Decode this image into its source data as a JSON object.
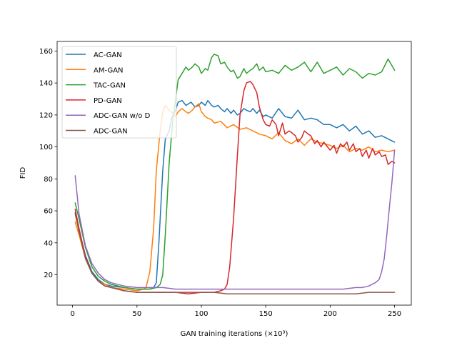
{
  "chart_data": {
    "type": "line",
    "title": "",
    "xlabel": "GAN training iterations (×10³)",
    "ylabel": "FID",
    "xlim": [
      -12,
      263
    ],
    "ylim": [
      1,
      166
    ],
    "xticks": [
      0,
      50,
      100,
      150,
      200,
      250
    ],
    "yticks": [
      20,
      40,
      60,
      80,
      100,
      120,
      140,
      160
    ],
    "grid": false,
    "legend_position": "top-left",
    "series": [
      {
        "name": "AC-GAN",
        "color": "#1f77b4",
        "x": [
          2,
          5,
          10,
          15,
          20,
          25,
          30,
          40,
          50,
          55,
          60,
          63,
          65,
          67,
          70,
          72,
          75,
          77,
          80,
          82,
          85,
          88,
          90,
          92,
          95,
          98,
          100,
          103,
          105,
          108,
          110,
          113,
          115,
          118,
          120,
          123,
          125,
          128,
          130,
          133,
          135,
          138,
          140,
          143,
          145,
          148,
          150,
          155,
          160,
          165,
          170,
          175,
          180,
          185,
          190,
          195,
          200,
          205,
          210,
          215,
          220,
          225,
          230,
          235,
          240,
          245,
          250
        ],
        "y": [
          59,
          48,
          32,
          22,
          17,
          14,
          13,
          12,
          11,
          11,
          11,
          12,
          15,
          40,
          85,
          105,
          110,
          118,
          123,
          128,
          129,
          126,
          127,
          128,
          125,
          126,
          128,
          126,
          129,
          126,
          125,
          126,
          124,
          122,
          124,
          121,
          123,
          120,
          121,
          124,
          123,
          122,
          124,
          121,
          123,
          119,
          120,
          118,
          124,
          119,
          118,
          123,
          117,
          118,
          117,
          114,
          114,
          112,
          114,
          110,
          113,
          108,
          110,
          106,
          107,
          105,
          103
        ]
      },
      {
        "name": "AM-GAN",
        "color": "#ff7f0e",
        "x": [
          2,
          5,
          10,
          15,
          20,
          25,
          30,
          40,
          50,
          55,
          57,
          60,
          63,
          65,
          68,
          70,
          72,
          75,
          78,
          80,
          82,
          85,
          88,
          90,
          93,
          95,
          98,
          100,
          103,
          105,
          108,
          110,
          115,
          120,
          125,
          130,
          135,
          140,
          145,
          150,
          155,
          160,
          165,
          170,
          175,
          180,
          185,
          190,
          195,
          200,
          205,
          210,
          215,
          220,
          225,
          230,
          235,
          240,
          245,
          250
        ],
        "y": [
          53,
          45,
          30,
          21,
          16,
          14,
          12,
          11,
          10,
          11,
          12,
          22,
          50,
          85,
          110,
          122,
          126,
          123,
          121,
          119,
          122,
          124,
          122,
          121,
          123,
          125,
          127,
          122,
          119,
          118,
          117,
          115,
          116,
          112,
          114,
          111,
          112,
          110,
          108,
          107,
          105,
          109,
          104,
          102,
          105,
          101,
          105,
          103,
          102,
          101,
          99,
          101,
          97,
          99,
          98,
          100,
          97,
          98,
          97,
          98
        ]
      },
      {
        "name": "TAC-GAN",
        "color": "#2ca02c",
        "x": [
          2,
          5,
          10,
          15,
          20,
          25,
          30,
          40,
          50,
          60,
          65,
          68,
          70,
          72,
          75,
          78,
          80,
          82,
          85,
          88,
          90,
          93,
          95,
          98,
          100,
          103,
          105,
          108,
          110,
          113,
          115,
          118,
          120,
          123,
          125,
          128,
          130,
          133,
          135,
          138,
          140,
          143,
          145,
          148,
          150,
          155,
          160,
          165,
          170,
          175,
          180,
          185,
          190,
          195,
          200,
          205,
          210,
          215,
          220,
          225,
          230,
          235,
          240,
          245,
          250
        ],
        "y": [
          65,
          55,
          37,
          25,
          19,
          16,
          14,
          12,
          11,
          11,
          12,
          14,
          20,
          45,
          90,
          118,
          130,
          142,
          146,
          150,
          148,
          150,
          152,
          150,
          146,
          149,
          148,
          156,
          158,
          157,
          152,
          153,
          150,
          147,
          148,
          143,
          144,
          149,
          146,
          148,
          149,
          152,
          148,
          150,
          147,
          148,
          146,
          151,
          148,
          150,
          153,
          147,
          153,
          146,
          148,
          150,
          145,
          149,
          147,
          143,
          146,
          145,
          147,
          155,
          148
        ]
      },
      {
        "name": "PD-GAN",
        "color": "#d62728",
        "x": [
          2,
          5,
          10,
          15,
          20,
          25,
          30,
          40,
          50,
          60,
          70,
          80,
          90,
          100,
          110,
          115,
          118,
          120,
          122,
          125,
          128,
          130,
          133,
          135,
          138,
          140,
          143,
          145,
          148,
          150,
          153,
          155,
          158,
          160,
          163,
          165,
          168,
          170,
          173,
          175,
          178,
          180,
          183,
          185,
          188,
          190,
          193,
          195,
          198,
          200,
          203,
          205,
          208,
          210,
          213,
          215,
          218,
          220,
          223,
          225,
          228,
          230,
          233,
          235,
          238,
          240,
          243,
          245,
          248,
          250
        ],
        "y": [
          61,
          49,
          31,
          21,
          16,
          13,
          12,
          10,
          9,
          9,
          9,
          9,
          8,
          9,
          9,
          10,
          11,
          14,
          25,
          55,
          95,
          120,
          135,
          140,
          141,
          139,
          134,
          125,
          117,
          114,
          113,
          117,
          114,
          107,
          115,
          108,
          110,
          109,
          107,
          103,
          106,
          110,
          108,
          107,
          102,
          104,
          100,
          103,
          100,
          98,
          101,
          96,
          102,
          100,
          103,
          98,
          102,
          97,
          99,
          94,
          98,
          93,
          99,
          95,
          97,
          94,
          95,
          89,
          91,
          90
        ]
      },
      {
        "name": "ADC-GAN w/o D",
        "color": "#9467bd",
        "x": [
          2,
          5,
          10,
          15,
          20,
          25,
          30,
          40,
          50,
          60,
          70,
          80,
          90,
          100,
          110,
          120,
          130,
          140,
          150,
          160,
          170,
          180,
          190,
          200,
          210,
          220,
          225,
          230,
          235,
          238,
          240,
          242,
          244,
          246,
          248,
          250
        ],
        "y": [
          82,
          58,
          38,
          27,
          21,
          17,
          15,
          13,
          12,
          12,
          12,
          11,
          11,
          11,
          11,
          11,
          11,
          11,
          11,
          11,
          11,
          11,
          11,
          11,
          11,
          12,
          12,
          13,
          15,
          17,
          22,
          30,
          45,
          62,
          78,
          98
        ]
      },
      {
        "name": "ADC-GAN",
        "color": "#8c564b",
        "x": [
          2,
          5,
          10,
          15,
          20,
          25,
          30,
          40,
          50,
          60,
          70,
          80,
          90,
          100,
          110,
          120,
          130,
          140,
          150,
          160,
          170,
          180,
          190,
          200,
          210,
          220,
          230,
          240,
          250
        ],
        "y": [
          58,
          47,
          30,
          21,
          16,
          13,
          12,
          10,
          9,
          9,
          9,
          9,
          9,
          9,
          9,
          8,
          8,
          8,
          8,
          8,
          8,
          8,
          8,
          8,
          8,
          8,
          9,
          9,
          9
        ]
      }
    ]
  }
}
